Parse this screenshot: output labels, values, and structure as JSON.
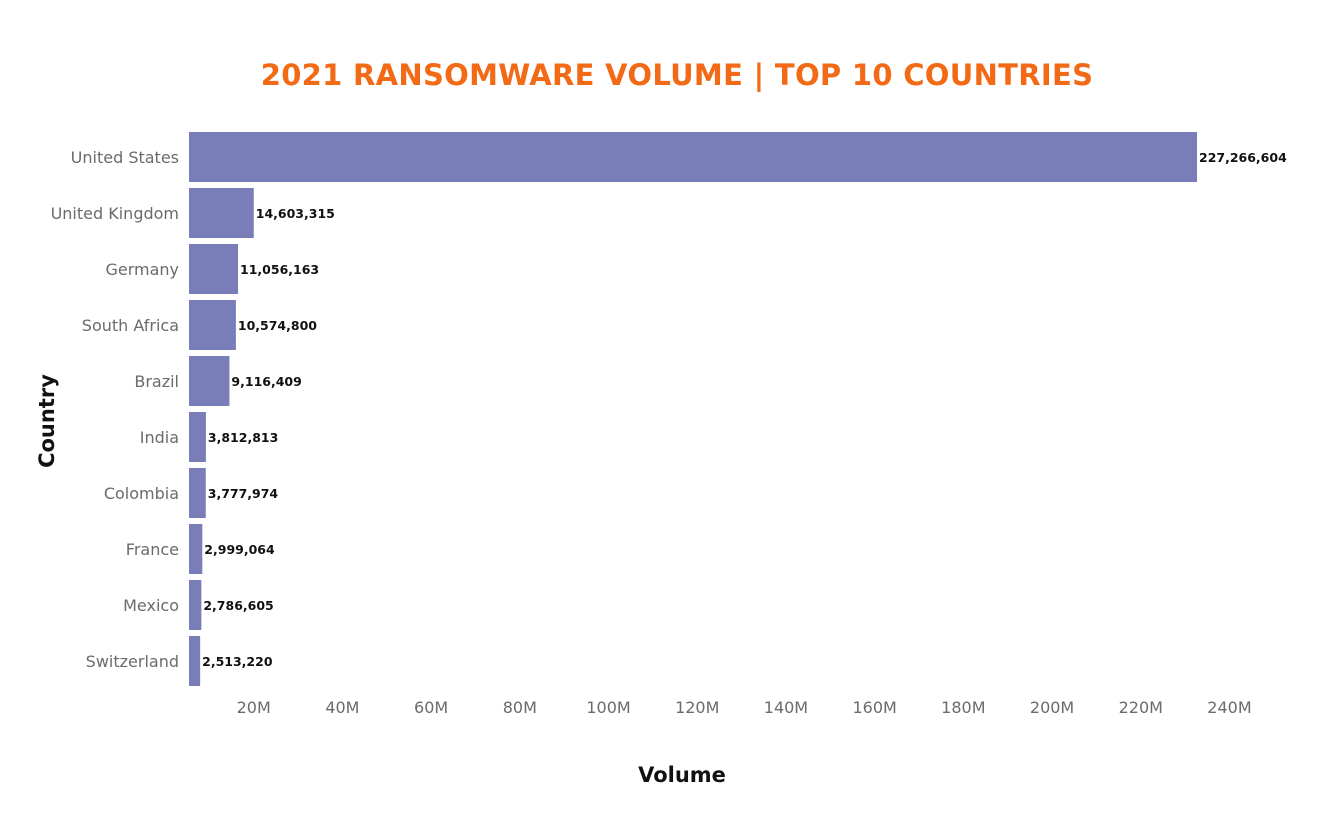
{
  "colors": {
    "title": "#f26a16",
    "bar": "#7a7eb8",
    "label": "#6b6b6b",
    "text": "#111111"
  },
  "chart_data": {
    "type": "bar",
    "orientation": "horizontal",
    "title": "2021 RANSOMWARE VOLUME | TOP 10 COUNTRIES",
    "xlabel": "Volume",
    "ylabel": "Country",
    "categories": [
      "United States",
      "United Kingdom",
      "Germany",
      "South Africa",
      "Brazil",
      "India",
      "Colombia",
      "France",
      "Mexico",
      "Switzerland"
    ],
    "values": [
      227266604,
      14603315,
      11056163,
      10574800,
      9116409,
      3812813,
      3777974,
      2999064,
      2786605,
      2513220
    ],
    "value_labels": [
      "227,266,604",
      "14,603,315",
      "11,056,163",
      "10,574,800",
      "9,116,409",
      "3,812,813",
      "3,777,974",
      "2,999,064",
      "2,786,605",
      "2,513,220"
    ],
    "x_ticks": [
      20000000,
      40000000,
      60000000,
      80000000,
      100000000,
      120000000,
      140000000,
      160000000,
      180000000,
      200000000,
      220000000,
      240000000
    ],
    "x_tick_labels": [
      "20M",
      "40M",
      "60M",
      "80M",
      "100M",
      "120M",
      "140M",
      "160M",
      "180M",
      "200M",
      "220M",
      "240M"
    ],
    "xlim": [
      0,
      240000000
    ],
    "grid": false,
    "legend": "none"
  }
}
